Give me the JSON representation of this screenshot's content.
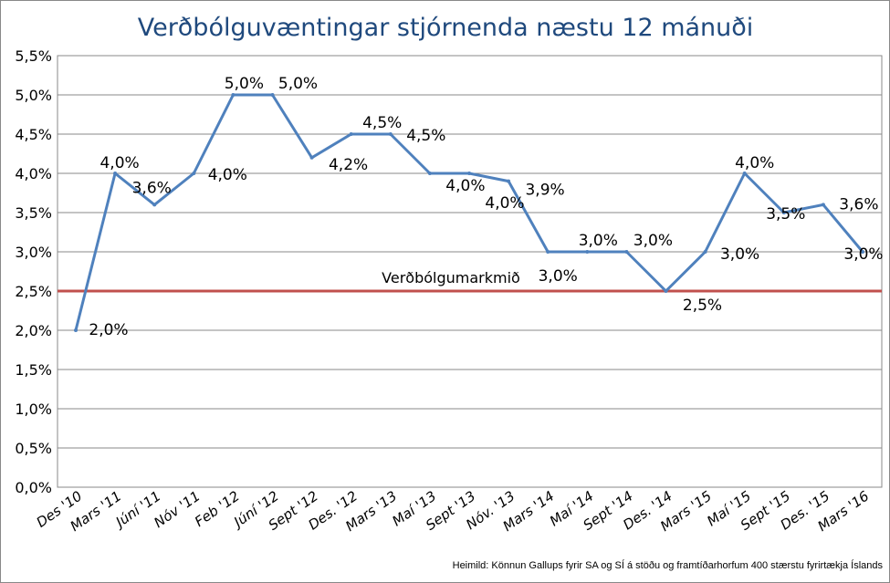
{
  "chart_data": {
    "type": "line",
    "title": "Verðbólguvæntingar stjórnenda næstu 12 mánuði",
    "xlabel": "",
    "ylabel": "",
    "ylim": [
      0,
      5.5
    ],
    "yticks": [
      "0,0%",
      "0,5%",
      "1,0%",
      "1,5%",
      "2,0%",
      "2,5%",
      "3,0%",
      "3,5%",
      "4,0%",
      "4,5%",
      "5,0%",
      "5,5%"
    ],
    "grid": true,
    "categories": [
      "Des '10",
      "Mars '11",
      "Júní '11",
      "Nóv '11",
      "Feb '12",
      "Júní '12",
      "Sept '12",
      "Des. '12",
      "Mars '13",
      "Maí '13",
      "Sept '13",
      "Nóv. '13",
      "Mars '14",
      "Maí '14",
      "Sept '14",
      "Des. '14",
      "Mars '15",
      "Maí '15",
      "Sept '15",
      "Des. '15",
      "Mars '16"
    ],
    "series": [
      {
        "name": "Verðbólguvæntingar",
        "color": "#4f81bd",
        "values": [
          2.0,
          4.0,
          3.6,
          4.0,
          5.0,
          5.0,
          4.2,
          4.5,
          4.5,
          4.0,
          4.0,
          3.9,
          3.0,
          3.0,
          3.0,
          2.5,
          3.0,
          4.0,
          3.5,
          3.6,
          3.0
        ],
        "labels": [
          "2,0%",
          "4,0%",
          "3,6%",
          "4,0%",
          "5,0%",
          "5,0%",
          "4,2%",
          "4,5%",
          "4,5%",
          "4,0%",
          "4,0%",
          "3,9%",
          "3,0%",
          "3,0%",
          "3,0%",
          "2,5%",
          "3,0%",
          "4,0%",
          "3,5%",
          "3,6%",
          "3,0%"
        ]
      }
    ],
    "reference_line": {
      "name": "Verðbólgumarkmið",
      "value": 2.5,
      "color": "#c0504d"
    },
    "source": "Heimild: Könnun Gallups fyrir SA og SÍ á stöðu og framtíðarhorfum 400 stærstu fyrirtækja Íslands"
  }
}
